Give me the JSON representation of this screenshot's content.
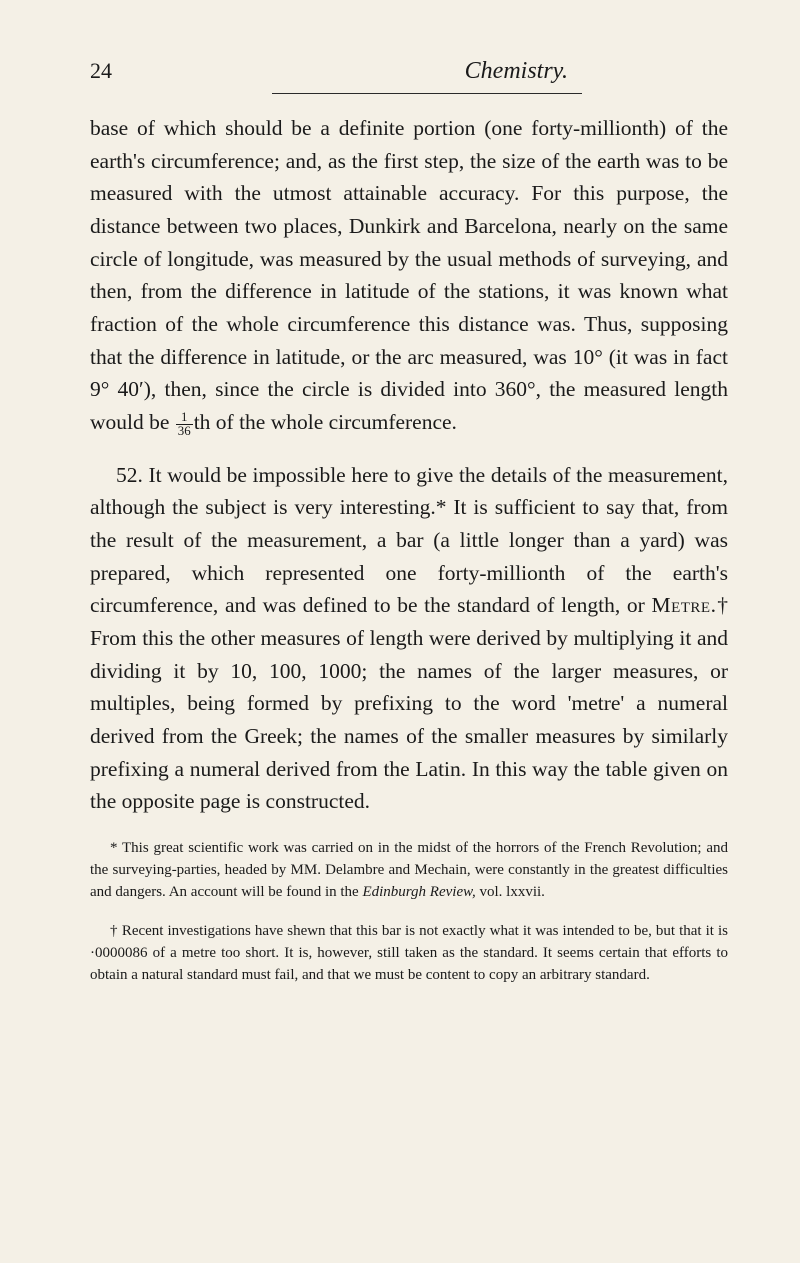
{
  "page": {
    "number": "24",
    "chapter_title": "Chemistry."
  },
  "paragraphs": {
    "p1": "base of which should be a definite portion (one forty-millionth) of the earth's circumference; and, as the first step, the size of the earth was to be measured with the utmost attainable accuracy. For this purpose, the distance between two places, Dunkirk and Barcelona, nearly on the same circle of longitude, was measured by the usual methods of surveying, and then, from the difference in latitude of the stations, it was known what fraction of the whole circumference this distance was. Thus, supposing that the difference in latitude, or the arc measured, was 10° (it was in fact 9° 40′), then, since the circle is divided into 360°, the measured length would be ",
    "p1_fraction_num": "1",
    "p1_fraction_den": "36",
    "p1_end": "th of the whole circumference.",
    "p2_num": "52.",
    "p2": " It would be impossible here to give the details of the measurement, although the subject is very interesting.* It is sufficient to say that, from the result of the measurement, a bar (a little longer than a yard) was prepared, which represented one forty-millionth of the earth's circumference, and was defined to be the standard of length, or ",
    "p2_metre": "Metre",
    "p2_cont": ".† From this the other measures of length were derived by multiplying it and dividing it by 10, 100, 1000; the names of the larger measures, or multiples, being formed by prefixing to the word 'metre' a numeral derived from the Greek; the names of the smaller measures by similarly prefixing a numeral derived from the Latin. In this way the table given on the opposite page is constructed."
  },
  "footnotes": {
    "fn1_marker": "*",
    "fn1": " This great scientific work was carried on in the midst of the horrors of the French Revolution; and the surveying-parties, headed by MM. Delambre and Mechain, were constantly in the greatest difficulties and dangers. An account will be found in the ",
    "fn1_italic": "Edinburgh Review,",
    "fn1_end": " vol. lxxvii.",
    "fn2_marker": "†",
    "fn2": " Recent investigations have shewn that this bar is not exactly what it was intended to be, but that it is ·0000086 of a metre too short. It is, however, still taken as the standard. It seems certain that efforts to obtain a natural standard must fail, and that we must be content to copy an arbitrary standard."
  },
  "colors": {
    "background": "#f4f0e6",
    "text": "#1a1a1a",
    "divider": "#2a2a2a"
  },
  "typography": {
    "body_fontsize": 21.5,
    "footnote_fontsize": 15,
    "page_num_fontsize": 22,
    "title_fontsize": 24
  }
}
